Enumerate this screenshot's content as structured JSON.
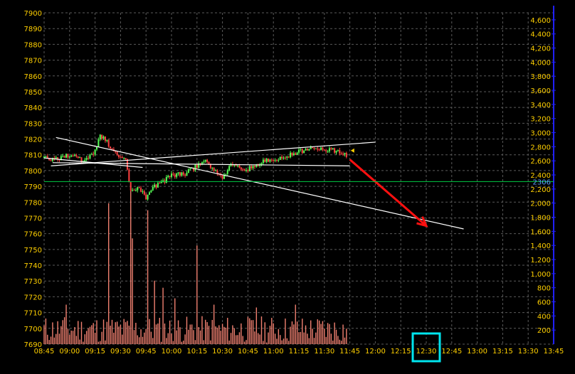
{
  "chart_data": {
    "type": "candlestick",
    "left_axis": {
      "label": "",
      "range": [
        7690,
        7900
      ],
      "ticks": [
        7690,
        7700,
        7710,
        7720,
        7730,
        7740,
        7750,
        7760,
        7770,
        7780,
        7790,
        7800,
        7810,
        7820,
        7830,
        7840,
        7850,
        7860,
        7870,
        7880,
        7890,
        7900
      ],
      "tick_labels": [
        "7690",
        "7700",
        "7710",
        "7720",
        "7730",
        "7740",
        "7750",
        "7760",
        "7770",
        "7780",
        "7790",
        "7800",
        "7810",
        "7820",
        "7830",
        "7840",
        "7850",
        "7860",
        "7870",
        "7880",
        "7890",
        "7900"
      ]
    },
    "right_axis": {
      "label": "",
      "range": [
        0,
        4700
      ],
      "ticks": [
        200,
        400,
        600,
        800,
        1000,
        1200,
        1400,
        1600,
        1800,
        2000,
        2200,
        2400,
        2600,
        2800,
        3000,
        3200,
        3400,
        3600,
        3800,
        4000,
        4200,
        4400,
        4600
      ],
      "tick_labels": [
        "200",
        "400",
        "600",
        "800",
        "1,000",
        "1,200",
        "1,400",
        "1,600",
        "1,800",
        "2,000",
        "2,200",
        "2,400",
        "2,600",
        "2,800",
        "3,000",
        "3,200",
        "3,400",
        "3,600",
        "3,800",
        "4,000",
        "4,200",
        "4,400",
        "4,600"
      ]
    },
    "x_axis": {
      "range": [
        "08:45",
        "13:45"
      ],
      "tick_labels": [
        "08:45",
        "09:00",
        "09:15",
        "09:30",
        "09:45",
        "10:00",
        "10:15",
        "10:30",
        "10:45",
        "11:00",
        "11:15",
        "11:30",
        "11:45",
        "12:00",
        "12:15",
        "12:30",
        "12:45",
        "13:00",
        "13:15",
        "13:30",
        "13:45"
      ],
      "highlighted_tick": "12:30",
      "highlight_color": "#00e5ee"
    },
    "grid": true,
    "current_level": {
      "volume_axis_value": 2306,
      "label": "2306",
      "color": "#00cc44"
    },
    "price_path": [
      [
        "08:45",
        7808
      ],
      [
        "08:52",
        7807
      ],
      [
        "09:00",
        7810
      ],
      [
        "09:08",
        7806
      ],
      [
        "09:15",
        7812
      ],
      [
        "09:18",
        7823
      ],
      [
        "09:22",
        7818
      ],
      [
        "09:28",
        7810
      ],
      [
        "09:33",
        7806
      ],
      [
        "09:36",
        7786
      ],
      [
        "09:40",
        7790
      ],
      [
        "09:45",
        7783
      ],
      [
        "09:50",
        7790
      ],
      [
        "09:55",
        7793
      ],
      [
        "10:00",
        7797
      ],
      [
        "10:08",
        7798
      ],
      [
        "10:15",
        7803
      ],
      [
        "10:20",
        7806
      ],
      [
        "10:25",
        7801
      ],
      [
        "10:30",
        7796
      ],
      [
        "10:35",
        7803
      ],
      [
        "10:45",
        7801
      ],
      [
        "10:55",
        7806
      ],
      [
        "11:05",
        7808
      ],
      [
        "11:15",
        7812
      ],
      [
        "11:25",
        7814
      ],
      [
        "11:35",
        7813
      ],
      [
        "11:43",
        7810
      ]
    ],
    "volume_spikes": [
      [
        "09:23",
        2000
      ],
      [
        "09:36",
        2200
      ],
      [
        "09:46",
        1900
      ],
      [
        "09:37",
        1500
      ],
      [
        "10:15",
        1400
      ],
      [
        "09:50",
        900
      ],
      [
        "09:55",
        800
      ],
      [
        "10:02",
        650
      ],
      [
        "10:25",
        560
      ],
      [
        "10:50",
        520
      ],
      [
        "08:58",
        560
      ],
      [
        "11:13",
        560
      ]
    ],
    "colors": {
      "grid": "#5a5a5a",
      "axis_text": "#ffd000",
      "right_axis_line": "#2020ff",
      "candle_up": "#55ff55",
      "candle_down": "#ff4040",
      "volume": "#f08070",
      "trendline": "#ffffff",
      "forecast_arrow": "#ff1010"
    },
    "annotations": [
      {
        "type": "trendline",
        "from": [
          "08:52",
          7821
        ],
        "to": [
          "12:52",
          7763
        ],
        "color": "#ffffff"
      },
      {
        "type": "trendline",
        "from": [
          "08:49",
          7803
        ],
        "to": [
          "12:00",
          7818
        ],
        "color": "#ffffff"
      },
      {
        "type": "trendline",
        "from": [
          "08:45",
          7808
        ],
        "to": [
          "09:43",
          7802
        ],
        "color": "#ffffff"
      },
      {
        "type": "trendline",
        "from": [
          "08:50",
          7805
        ],
        "to": [
          "11:45",
          7803
        ],
        "color": "#ffffff"
      },
      {
        "type": "arrow",
        "from": [
          "11:45",
          7807
        ],
        "to": [
          "12:30",
          7765
        ],
        "color": "#ff1010"
      }
    ]
  }
}
